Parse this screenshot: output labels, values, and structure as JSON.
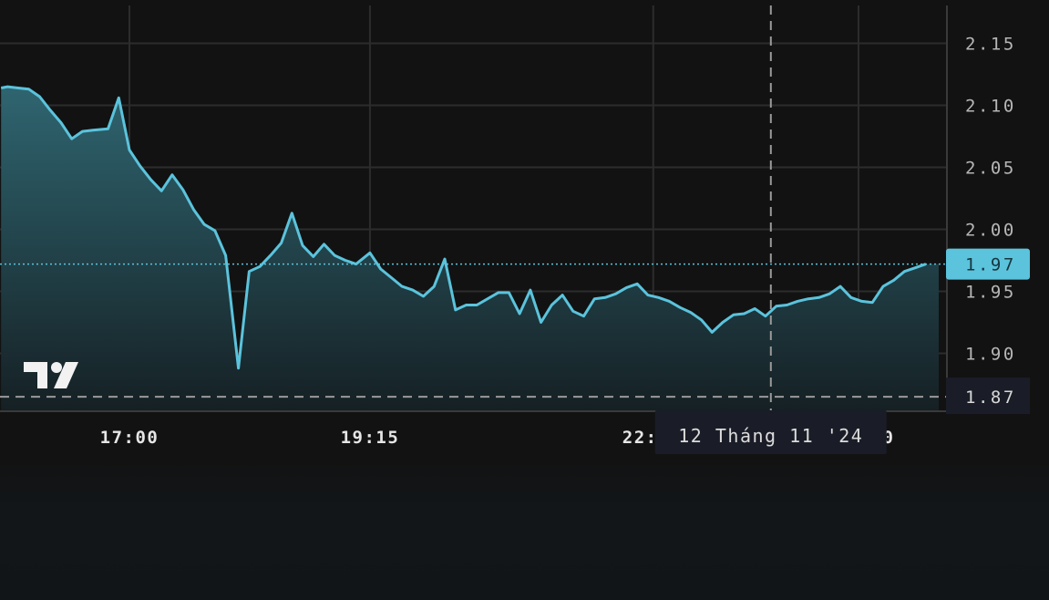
{
  "chart_data": {
    "type": "area",
    "title": "",
    "xlabel": "",
    "ylabel": "",
    "ylim": [
      1.855,
      2.18
    ],
    "x_ticks": [
      {
        "label": "17:00",
        "x": 0.0
      },
      {
        "label": "19:15",
        "x": 2.25
      },
      {
        "label": "22:",
        "x": 4.9
      },
      {
        "label": "0",
        "x": 6.82
      }
    ],
    "vertical_grid_x": [
      0.0,
      2.25,
      4.9,
      6.82
    ],
    "y_ticks": [
      2.15,
      2.1,
      2.05,
      2.0,
      1.95,
      1.9
    ],
    "grid": true,
    "series": [
      {
        "name": "",
        "color": "#5bc3dc",
        "points": [
          [
            -1.2,
            2.114
          ],
          [
            -1.14,
            2.115
          ],
          [
            -1.04,
            2.114
          ],
          [
            -0.94,
            2.113
          ],
          [
            -0.84,
            2.107
          ],
          [
            -0.74,
            2.096
          ],
          [
            -0.64,
            2.086
          ],
          [
            -0.54,
            2.073
          ],
          [
            -0.44,
            2.079
          ],
          [
            -0.34,
            2.08
          ],
          [
            -0.2,
            2.081
          ],
          [
            -0.1,
            2.106
          ],
          [
            0.0,
            2.064
          ],
          [
            0.1,
            2.051
          ],
          [
            0.2,
            2.04
          ],
          [
            0.3,
            2.031
          ],
          [
            0.4,
            2.044
          ],
          [
            0.5,
            2.032
          ],
          [
            0.6,
            2.016
          ],
          [
            0.7,
            2.004
          ],
          [
            0.8,
            1.999
          ],
          [
            0.9,
            1.979
          ],
          [
            1.02,
            1.888
          ],
          [
            1.12,
            1.966
          ],
          [
            1.22,
            1.97
          ],
          [
            1.32,
            1.979
          ],
          [
            1.42,
            1.989
          ],
          [
            1.52,
            2.013
          ],
          [
            1.62,
            1.987
          ],
          [
            1.72,
            1.978
          ],
          [
            1.82,
            1.988
          ],
          [
            1.92,
            1.979
          ],
          [
            2.02,
            1.975
          ],
          [
            2.12,
            1.972
          ],
          [
            2.25,
            1.981
          ],
          [
            2.35,
            1.968
          ],
          [
            2.45,
            1.961
          ],
          [
            2.55,
            1.954
          ],
          [
            2.65,
            1.951
          ],
          [
            2.75,
            1.946
          ],
          [
            2.85,
            1.954
          ],
          [
            2.95,
            1.976
          ],
          [
            3.05,
            1.935
          ],
          [
            3.15,
            1.939
          ],
          [
            3.25,
            1.939
          ],
          [
            3.35,
            1.944
          ],
          [
            3.45,
            1.949
          ],
          [
            3.55,
            1.949
          ],
          [
            3.65,
            1.932
          ],
          [
            3.75,
            1.951
          ],
          [
            3.85,
            1.925
          ],
          [
            3.95,
            1.939
          ],
          [
            4.05,
            1.947
          ],
          [
            4.15,
            1.934
          ],
          [
            4.25,
            1.93
          ],
          [
            4.35,
            1.944
          ],
          [
            4.45,
            1.945
          ],
          [
            4.55,
            1.948
          ],
          [
            4.65,
            1.953
          ],
          [
            4.75,
            1.956
          ],
          [
            4.85,
            1.947
          ],
          [
            4.95,
            1.945
          ],
          [
            5.05,
            1.942
          ],
          [
            5.15,
            1.937
          ],
          [
            5.25,
            1.933
          ],
          [
            5.35,
            1.927
          ],
          [
            5.45,
            1.917
          ],
          [
            5.55,
            1.925
          ],
          [
            5.65,
            1.931
          ],
          [
            5.75,
            1.932
          ],
          [
            5.85,
            1.936
          ],
          [
            5.95,
            1.93
          ],
          [
            6.05,
            1.938
          ],
          [
            6.15,
            1.939
          ],
          [
            6.25,
            1.942
          ],
          [
            6.35,
            1.944
          ],
          [
            6.45,
            1.945
          ],
          [
            6.55,
            1.948
          ],
          [
            6.65,
            1.954
          ],
          [
            6.75,
            1.945
          ],
          [
            6.85,
            1.942
          ],
          [
            6.95,
            1.941
          ],
          [
            7.05,
            1.954
          ],
          [
            7.15,
            1.959
          ],
          [
            7.25,
            1.966
          ],
          [
            7.35,
            1.969
          ],
          [
            7.45,
            1.972
          ]
        ]
      }
    ],
    "reference_lines": {
      "current_price": 1.972,
      "low_price": 1.865,
      "crosshair_x": 6.0
    },
    "price_labels": {
      "current": "1.97",
      "low": "1.87"
    },
    "crosshair_date_label": "12 Tháng 11 '24",
    "watermark": "TV",
    "colors": {
      "background": "#121212",
      "line": "#5bc3dc",
      "area_top": "#2f6570",
      "area_bottom": "#152024",
      "grid": "#2c2c2c",
      "axis_text": "#b7b7b7",
      "current_badge": "#5bc3dc",
      "low_badge": "#1a1d27",
      "tooltip_bg": "#1a1d27"
    }
  }
}
